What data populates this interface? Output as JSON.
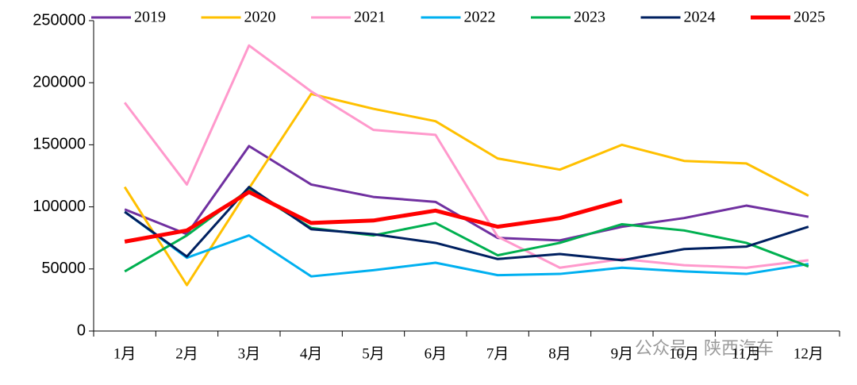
{
  "chart_data": {
    "type": "line",
    "categories": [
      "1月",
      "2月",
      "3月",
      "4月",
      "5月",
      "6月",
      "7月",
      "8月",
      "9月",
      "10月",
      "11月",
      "12月"
    ],
    "series": [
      {
        "name": "2019",
        "color": "#7030a0",
        "values": [
          98000,
          78000,
          149000,
          118000,
          108000,
          104000,
          75000,
          73000,
          84000,
          91000,
          101000,
          92000
        ]
      },
      {
        "name": "2020",
        "color": "#ffc000",
        "values": [
          116000,
          37000,
          115000,
          191000,
          179000,
          169000,
          139000,
          130000,
          150000,
          137000,
          135000,
          109000
        ]
      },
      {
        "name": "2021",
        "color": "#ff99cc",
        "values": [
          184000,
          118000,
          230000,
          193000,
          162000,
          158000,
          76000,
          51000,
          58000,
          53000,
          51000,
          57000
        ]
      },
      {
        "name": "2022",
        "color": "#00b0f0",
        "values": [
          96000,
          59000,
          77000,
          44000,
          49000,
          55000,
          45000,
          46000,
          51000,
          48000,
          46000,
          54000
        ]
      },
      {
        "name": "2023",
        "color": "#00b050",
        "values": [
          48000,
          77000,
          114000,
          83000,
          77000,
          87000,
          61000,
          71000,
          86000,
          81000,
          71000,
          52000
        ]
      },
      {
        "name": "2024",
        "color": "#002060",
        "values": [
          96000,
          60000,
          116000,
          82000,
          78000,
          71000,
          58000,
          62000,
          57000,
          66000,
          68000,
          84000
        ]
      },
      {
        "name": "2025",
        "color": "#ff0000",
        "values": [
          72000,
          81000,
          112000,
          87000,
          89000,
          97000,
          84000,
          91000,
          105000,
          null,
          null,
          null
        ]
      }
    ],
    "ylim": [
      0,
      250000
    ],
    "yticks": [
      0,
      50000,
      100000,
      150000,
      200000,
      250000
    ],
    "grid": false,
    "legend": "top",
    "watermark": "公众号 · 陕西汽车"
  }
}
